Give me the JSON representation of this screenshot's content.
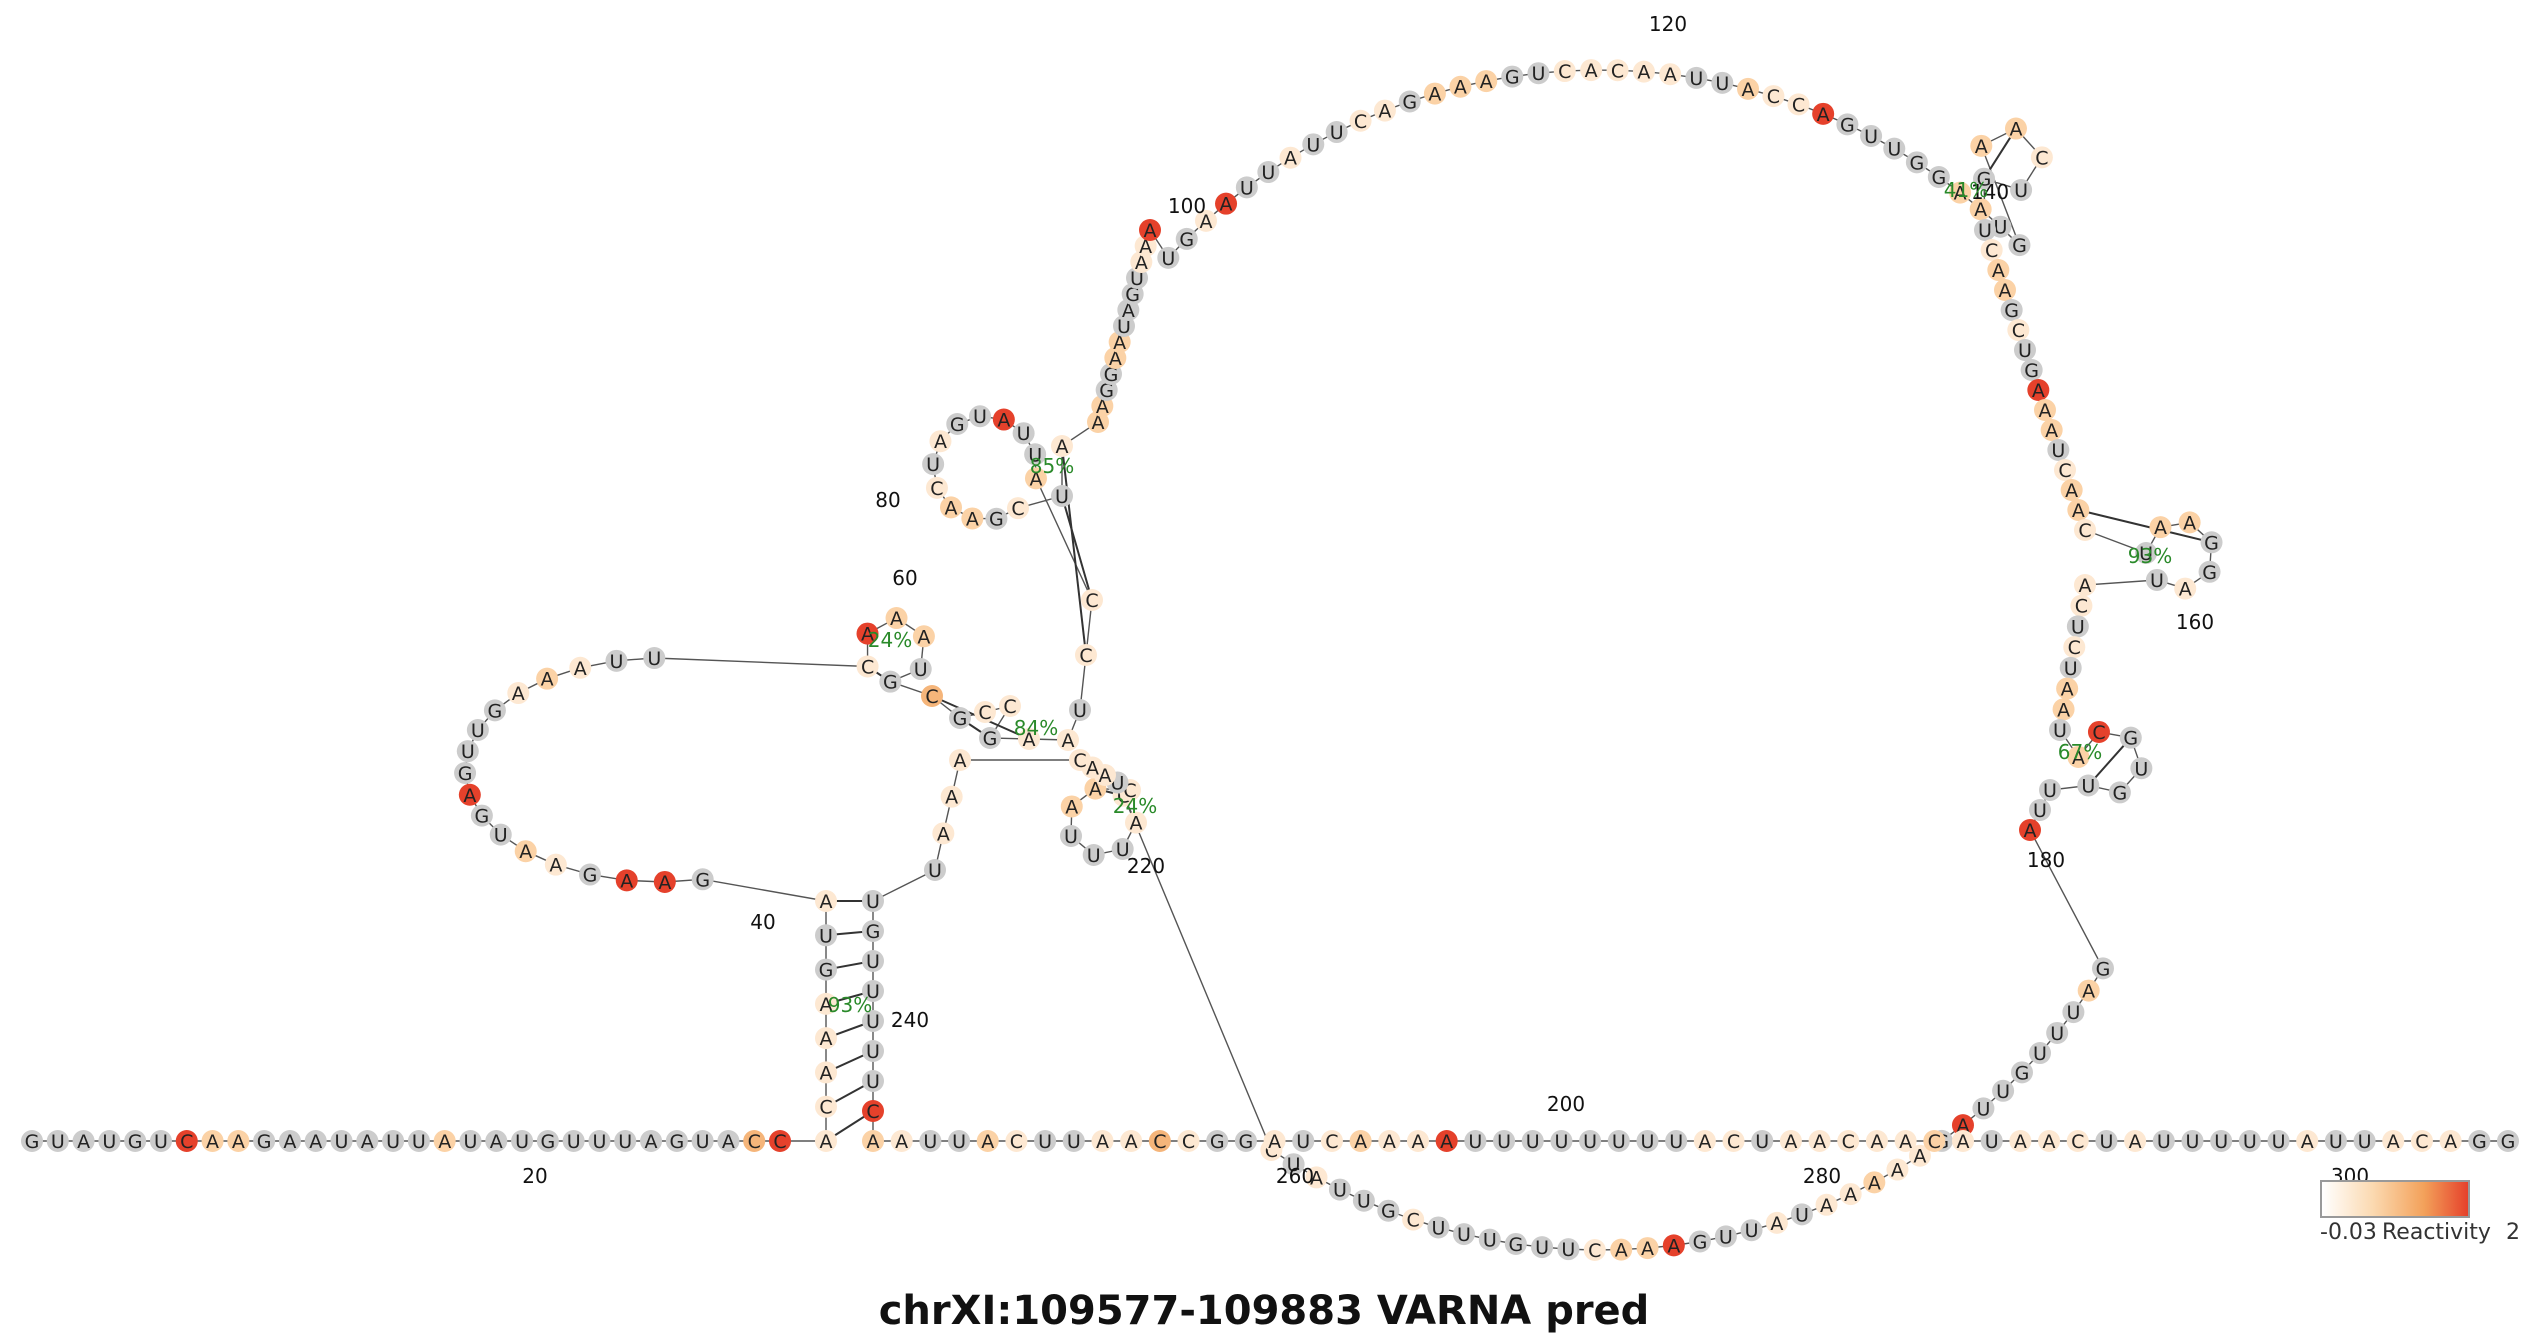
{
  "title": "chrXI:109577-109883  VARNA  pred",
  "legend": {
    "min": "-0.03",
    "label": "Reactivity",
    "max": "2"
  },
  "colors": {
    "grey": "#cccccc",
    "pale": "#fde8d2",
    "light": "#fbd2a6",
    "orange": "#f5b57a",
    "red": "#e5412b"
  },
  "position_labels": [
    "20",
    "40",
    "60",
    "80",
    "100",
    "120",
    "140",
    "160",
    "180",
    "200",
    "220",
    "240",
    "260",
    "280",
    "300"
  ],
  "pair_percentages": [
    "24%",
    "84%",
    "85%",
    "41%",
    "93%",
    "67%",
    "24%",
    "93%"
  ],
  "sequence": [
    {
      "b": "G",
      "c": "grey"
    },
    {
      "b": "U",
      "c": "grey"
    },
    {
      "b": "A",
      "c": "grey"
    },
    {
      "b": "U",
      "c": "grey"
    },
    {
      "b": "G",
      "c": "grey"
    },
    {
      "b": "U",
      "c": "grey"
    },
    {
      "b": "C",
      "c": "red"
    },
    {
      "b": "A",
      "c": "light"
    },
    {
      "b": "A",
      "c": "light"
    },
    {
      "b": "G",
      "c": "grey"
    },
    {
      "b": "A",
      "c": "grey"
    },
    {
      "b": "A",
      "c": "grey"
    },
    {
      "b": "U",
      "c": "grey"
    },
    {
      "b": "A",
      "c": "grey"
    },
    {
      "b": "U",
      "c": "grey"
    },
    {
      "b": "U",
      "c": "grey"
    },
    {
      "b": "A",
      "c": "light"
    },
    {
      "b": "U",
      "c": "grey"
    },
    {
      "b": "A",
      "c": "grey"
    },
    {
      "b": "U",
      "c": "grey"
    },
    {
      "b": "G",
      "c": "grey"
    },
    {
      "b": "U",
      "c": "grey"
    },
    {
      "b": "U",
      "c": "grey"
    },
    {
      "b": "U",
      "c": "grey"
    },
    {
      "b": "A",
      "c": "grey"
    },
    {
      "b": "G",
      "c": "grey"
    },
    {
      "b": "U",
      "c": "grey"
    },
    {
      "b": "A",
      "c": "grey"
    },
    {
      "b": "C",
      "c": "orange"
    },
    {
      "b": "C",
      "c": "red"
    },
    {
      "b": "A",
      "c": "pale"
    },
    {
      "b": "C",
      "c": "pale"
    },
    {
      "b": "A",
      "c": "pale"
    },
    {
      "b": "A",
      "c": "pale"
    },
    {
      "b": "A",
      "c": "pale"
    },
    {
      "b": "G",
      "c": "grey"
    },
    {
      "b": "U",
      "c": "grey"
    },
    {
      "b": "A",
      "c": "pale"
    },
    {
      "b": "G",
      "c": "grey"
    },
    {
      "b": "A",
      "c": "red"
    },
    {
      "b": "A",
      "c": "red"
    },
    {
      "b": "G",
      "c": "grey"
    },
    {
      "b": "A",
      "c": "pale"
    },
    {
      "b": "A",
      "c": "light"
    },
    {
      "b": "U",
      "c": "grey"
    },
    {
      "b": "G",
      "c": "grey"
    },
    {
      "b": "A",
      "c": "red"
    },
    {
      "b": "G",
      "c": "grey"
    },
    {
      "b": "U",
      "c": "grey"
    },
    {
      "b": "U",
      "c": "grey"
    },
    {
      "b": "G",
      "c": "grey"
    },
    {
      "b": "A",
      "c": "pale"
    },
    {
      "b": "A",
      "c": "light"
    },
    {
      "b": "A",
      "c": "pale"
    },
    {
      "b": "U",
      "c": "grey"
    },
    {
      "b": "U",
      "c": "grey"
    },
    {
      "b": "C",
      "c": "pale"
    },
    {
      "b": "A",
      "c": "red"
    },
    {
      "b": "A",
      "c": "light"
    },
    {
      "b": "A",
      "c": "light"
    },
    {
      "b": "U",
      "c": "grey"
    },
    {
      "b": "G",
      "c": "grey"
    },
    {
      "b": "C",
      "c": "orange"
    },
    {
      "b": "G",
      "c": "grey"
    },
    {
      "b": "C",
      "c": "pale"
    },
    {
      "b": "C",
      "c": "pale"
    },
    {
      "b": "G",
      "c": "grey"
    },
    {
      "b": "A",
      "c": "pale"
    },
    {
      "b": "A",
      "c": "pale"
    },
    {
      "b": "U",
      "c": "grey"
    },
    {
      "b": "C",
      "c": "pale"
    },
    {
      "b": "C",
      "c": "pale"
    },
    {
      "b": "A",
      "c": "light"
    },
    {
      "b": "U",
      "c": "grey"
    },
    {
      "b": "U",
      "c": "grey"
    },
    {
      "b": "A",
      "c": "red"
    },
    {
      "b": "U",
      "c": "grey"
    },
    {
      "b": "G",
      "c": "grey"
    },
    {
      "b": "A",
      "c": "pale"
    },
    {
      "b": "U",
      "c": "grey"
    },
    {
      "b": "C",
      "c": "pale"
    },
    {
      "b": "A",
      "c": "light"
    },
    {
      "b": "A",
      "c": "light"
    },
    {
      "b": "G",
      "c": "grey"
    },
    {
      "b": "C",
      "c": "pale"
    },
    {
      "b": "U",
      "c": "grey"
    },
    {
      "b": "A",
      "c": "pale"
    },
    {
      "b": "A",
      "c": "light"
    },
    {
      "b": "A",
      "c": "light"
    },
    {
      "b": "G",
      "c": "grey"
    },
    {
      "b": "G",
      "c": "grey"
    },
    {
      "b": "A",
      "c": "light"
    },
    {
      "b": "A",
      "c": "light"
    },
    {
      "b": "U",
      "c": "grey"
    },
    {
      "b": "A",
      "c": "grey"
    },
    {
      "b": "G",
      "c": "grey"
    },
    {
      "b": "U",
      "c": "grey"
    },
    {
      "b": "A",
      "c": "pale"
    },
    {
      "b": "A",
      "c": "pale"
    },
    {
      "b": "A",
      "c": "red"
    },
    {
      "b": "U",
      "c": "grey"
    },
    {
      "b": "G",
      "c": "grey"
    },
    {
      "b": "A",
      "c": "pale"
    },
    {
      "b": "A",
      "c": "red"
    },
    {
      "b": "U",
      "c": "grey"
    },
    {
      "b": "U",
      "c": "grey"
    },
    {
      "b": "A",
      "c": "pale"
    },
    {
      "b": "U",
      "c": "grey"
    },
    {
      "b": "U",
      "c": "grey"
    },
    {
      "b": "C",
      "c": "pale"
    },
    {
      "b": "A",
      "c": "pale"
    },
    {
      "b": "G",
      "c": "grey"
    },
    {
      "b": "A",
      "c": "light"
    },
    {
      "b": "A",
      "c": "light"
    },
    {
      "b": "A",
      "c": "light"
    },
    {
      "b": "G",
      "c": "grey"
    },
    {
      "b": "U",
      "c": "grey"
    },
    {
      "b": "C",
      "c": "pale"
    },
    {
      "b": "A",
      "c": "pale"
    },
    {
      "b": "C",
      "c": "pale"
    },
    {
      "b": "A",
      "c": "pale"
    },
    {
      "b": "A",
      "c": "pale"
    },
    {
      "b": "U",
      "c": "grey"
    },
    {
      "b": "U",
      "c": "grey"
    },
    {
      "b": "A",
      "c": "light"
    },
    {
      "b": "C",
      "c": "pale"
    },
    {
      "b": "C",
      "c": "pale"
    },
    {
      "b": "A",
      "c": "red"
    },
    {
      "b": "G",
      "c": "grey"
    },
    {
      "b": "U",
      "c": "grey"
    },
    {
      "b": "U",
      "c": "grey"
    },
    {
      "b": "G",
      "c": "grey"
    },
    {
      "b": "G",
      "c": "grey"
    },
    {
      "b": "A",
      "c": "light"
    },
    {
      "b": "A",
      "c": "light"
    },
    {
      "b": "U",
      "c": "grey"
    },
    {
      "b": "G",
      "c": "grey"
    },
    {
      "b": "A",
      "c": "light"
    },
    {
      "b": "A",
      "c": "light"
    },
    {
      "b": "C",
      "c": "pale"
    },
    {
      "b": "U",
      "c": "grey"
    },
    {
      "b": "G",
      "c": "grey"
    },
    {
      "b": "U",
      "c": "grey"
    },
    {
      "b": "C",
      "c": "pale"
    },
    {
      "b": "A",
      "c": "light"
    },
    {
      "b": "A",
      "c": "light"
    },
    {
      "b": "G",
      "c": "grey"
    },
    {
      "b": "C",
      "c": "pale"
    },
    {
      "b": "U",
      "c": "grey"
    },
    {
      "b": "G",
      "c": "grey"
    },
    {
      "b": "A",
      "c": "red"
    },
    {
      "b": "A",
      "c": "light"
    },
    {
      "b": "A",
      "c": "light"
    },
    {
      "b": "U",
      "c": "grey"
    },
    {
      "b": "C",
      "c": "pale"
    },
    {
      "b": "A",
      "c": "light"
    },
    {
      "b": "A",
      "c": "light"
    },
    {
      "b": "C",
      "c": "pale"
    },
    {
      "b": "U",
      "c": "grey"
    },
    {
      "b": "A",
      "c": "light"
    },
    {
      "b": "A",
      "c": "light"
    },
    {
      "b": "G",
      "c": "grey"
    },
    {
      "b": "G",
      "c": "grey"
    },
    {
      "b": "A",
      "c": "pale"
    },
    {
      "b": "U",
      "c": "grey"
    },
    {
      "b": "A",
      "c": "pale"
    },
    {
      "b": "C",
      "c": "pale"
    },
    {
      "b": "U",
      "c": "grey"
    },
    {
      "b": "C",
      "c": "pale"
    },
    {
      "b": "U",
      "c": "grey"
    },
    {
      "b": "A",
      "c": "light"
    },
    {
      "b": "A",
      "c": "light"
    },
    {
      "b": "U",
      "c": "grey"
    },
    {
      "b": "A",
      "c": "light"
    },
    {
      "b": "C",
      "c": "red"
    },
    {
      "b": "G",
      "c": "grey"
    },
    {
      "b": "U",
      "c": "grey"
    },
    {
      "b": "G",
      "c": "grey"
    },
    {
      "b": "U",
      "c": "grey"
    },
    {
      "b": "U",
      "c": "grey"
    },
    {
      "b": "U",
      "c": "grey"
    },
    {
      "b": "A",
      "c": "red"
    },
    {
      "b": "G",
      "c": "grey"
    },
    {
      "b": "A",
      "c": "light"
    },
    {
      "b": "U",
      "c": "grey"
    },
    {
      "b": "U",
      "c": "grey"
    },
    {
      "b": "U",
      "c": "grey"
    },
    {
      "b": "G",
      "c": "grey"
    },
    {
      "b": "U",
      "c": "grey"
    },
    {
      "b": "U",
      "c": "grey"
    },
    {
      "b": "A",
      "c": "red"
    },
    {
      "b": "G",
      "c": "grey"
    },
    {
      "b": "A",
      "c": "pale"
    },
    {
      "b": "A",
      "c": "pale"
    },
    {
      "b": "A",
      "c": "light"
    },
    {
      "b": "A",
      "c": "pale"
    },
    {
      "b": "A",
      "c": "pale"
    },
    {
      "b": "U",
      "c": "grey"
    },
    {
      "b": "A",
      "c": "pale"
    },
    {
      "b": "U",
      "c": "grey"
    },
    {
      "b": "U",
      "c": "grey"
    },
    {
      "b": "G",
      "c": "grey"
    },
    {
      "b": "A",
      "c": "red"
    },
    {
      "b": "A",
      "c": "light"
    },
    {
      "b": "A",
      "c": "light"
    },
    {
      "b": "C",
      "c": "pale"
    },
    {
      "b": "U",
      "c": "grey"
    },
    {
      "b": "U",
      "c": "grey"
    },
    {
      "b": "G",
      "c": "grey"
    },
    {
      "b": "U",
      "c": "grey"
    },
    {
      "b": "U",
      "c": "grey"
    },
    {
      "b": "U",
      "c": "grey"
    },
    {
      "b": "C",
      "c": "pale"
    },
    {
      "b": "G",
      "c": "grey"
    },
    {
      "b": "U",
      "c": "grey"
    },
    {
      "b": "U",
      "c": "grey"
    },
    {
      "b": "A",
      "c": "pale"
    },
    {
      "b": "U",
      "c": "grey"
    },
    {
      "b": "C",
      "c": "pale"
    },
    {
      "b": "C",
      "c": "pale"
    },
    {
      "b": "A",
      "c": "pale"
    },
    {
      "b": "U",
      "c": "grey"
    },
    {
      "b": "U",
      "c": "grey"
    },
    {
      "b": "U",
      "c": "grey"
    },
    {
      "b": "A",
      "c": "light"
    },
    {
      "b": "A",
      "c": "light"
    },
    {
      "b": "C",
      "c": "pale"
    },
    {
      "b": "U",
      "c": "grey"
    },
    {
      "b": "A",
      "c": "pale"
    },
    {
      "b": "A",
      "c": "pale"
    },
    {
      "b": "C",
      "c": "pale"
    },
    {
      "b": "A",
      "c": "pale"
    },
    {
      "b": "A",
      "c": "pale"
    },
    {
      "b": "A",
      "c": "pale"
    },
    {
      "b": "U",
      "c": "grey"
    },
    {
      "b": "U",
      "c": "grey"
    },
    {
      "b": "G",
      "c": "grey"
    },
    {
      "b": "U",
      "c": "grey"
    },
    {
      "b": "U",
      "c": "grey"
    },
    {
      "b": "U",
      "c": "grey"
    },
    {
      "b": "U",
      "c": "grey"
    },
    {
      "b": "U",
      "c": "grey"
    },
    {
      "b": "C",
      "c": "red"
    },
    {
      "b": "A",
      "c": "light"
    },
    {
      "b": "A",
      "c": "pale"
    },
    {
      "b": "U",
      "c": "grey"
    },
    {
      "b": "U",
      "c": "grey"
    },
    {
      "b": "A",
      "c": "light"
    },
    {
      "b": "C",
      "c": "pale"
    },
    {
      "b": "U",
      "c": "grey"
    },
    {
      "b": "U",
      "c": "grey"
    },
    {
      "b": "A",
      "c": "pale"
    },
    {
      "b": "A",
      "c": "pale"
    },
    {
      "b": "C",
      "c": "orange"
    },
    {
      "b": "C",
      "c": "pale"
    },
    {
      "b": "G",
      "c": "grey"
    },
    {
      "b": "G",
      "c": "grey"
    },
    {
      "b": "A",
      "c": "pale"
    },
    {
      "b": "U",
      "c": "grey"
    },
    {
      "b": "C",
      "c": "pale"
    },
    {
      "b": "A",
      "c": "light"
    },
    {
      "b": "A",
      "c": "pale"
    },
    {
      "b": "A",
      "c": "pale"
    },
    {
      "b": "A",
      "c": "red"
    },
    {
      "b": "U",
      "c": "grey"
    },
    {
      "b": "U",
      "c": "grey"
    },
    {
      "b": "U",
      "c": "grey"
    },
    {
      "b": "U",
      "c": "grey"
    },
    {
      "b": "U",
      "c": "grey"
    },
    {
      "b": "U",
      "c": "grey"
    },
    {
      "b": "U",
      "c": "grey"
    },
    {
      "b": "U",
      "c": "grey"
    },
    {
      "b": "A",
      "c": "pale"
    },
    {
      "b": "C",
      "c": "pale"
    },
    {
      "b": "U",
      "c": "grey"
    },
    {
      "b": "A",
      "c": "pale"
    },
    {
      "b": "A",
      "c": "pale"
    },
    {
      "b": "C",
      "c": "pale"
    },
    {
      "b": "A",
      "c": "pale"
    },
    {
      "b": "A",
      "c": "pale"
    },
    {
      "b": "C",
      "c": "light"
    },
    {
      "b": "A",
      "c": "pale"
    },
    {
      "b": "U",
      "c": "grey"
    },
    {
      "b": "A",
      "c": "pale"
    },
    {
      "b": "A",
      "c": "pale"
    },
    {
      "b": "C",
      "c": "pale"
    },
    {
      "b": "U",
      "c": "grey"
    },
    {
      "b": "A",
      "c": "pale"
    },
    {
      "b": "U",
      "c": "grey"
    },
    {
      "b": "U",
      "c": "grey"
    },
    {
      "b": "U",
      "c": "grey"
    },
    {
      "b": "U",
      "c": "grey"
    },
    {
      "b": "U",
      "c": "grey"
    },
    {
      "b": "A",
      "c": "pale"
    },
    {
      "b": "U",
      "c": "grey"
    },
    {
      "b": "U",
      "c": "grey"
    },
    {
      "b": "A",
      "c": "pale"
    },
    {
      "b": "C",
      "c": "pale"
    },
    {
      "b": "A",
      "c": "pale"
    },
    {
      "b": "G",
      "c": "grey"
    },
    {
      "b": "G",
      "c": "grey"
    }
  ]
}
